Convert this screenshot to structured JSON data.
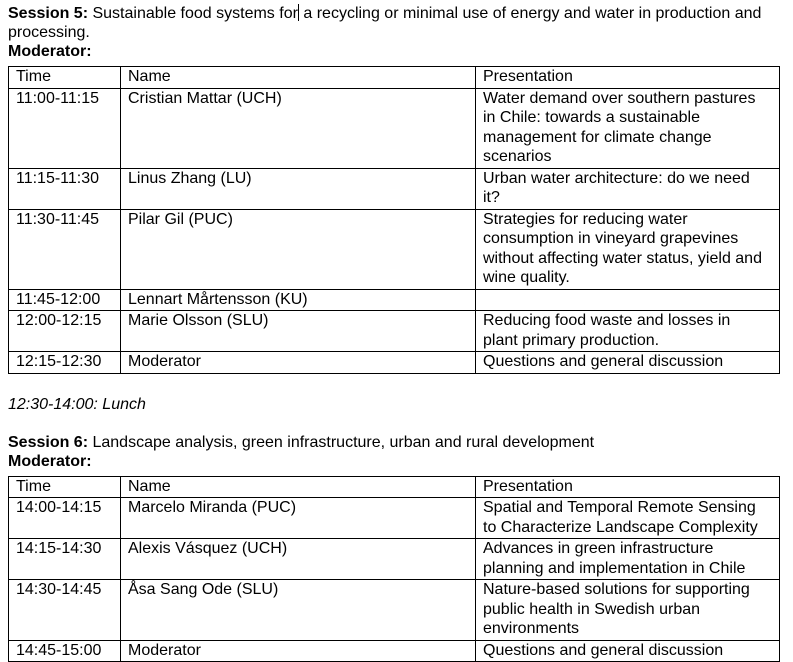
{
  "document": {
    "colors": {
      "background": "#ffffff",
      "text": "#000000",
      "table_border": "#000000"
    },
    "session5": {
      "heading_bold": "Session 5:",
      "heading_before_caret": " Sustainable food systems for",
      "heading_after_caret": " a recycling or minimal use of energy and water in production and processing.",
      "moderator_label": "Moderator:",
      "table": {
        "headers": [
          "Time",
          "Name",
          "Presentation"
        ],
        "rows": [
          {
            "time": "11:00-11:15",
            "name": "Cristian Mattar (UCH)",
            "presentation": "Water demand over southern pastures in Chile: towards a sustainable management for climate change scenarios"
          },
          {
            "time": "11:15-11:30",
            "name": "Linus Zhang (LU)",
            "presentation": "Urban water architecture: do we need it?"
          },
          {
            "time": "11:30-11:45",
            "name": "Pilar Gil (PUC)",
            "presentation": "Strategies for reducing water consumption in vineyard grapevines without affecting water status, yield and wine quality."
          },
          {
            "time": "11:45-12:00",
            "name": "Lennart Mårtensson (KU)",
            "presentation": ""
          },
          {
            "time": "12:00-12:15",
            "name": "Marie Olsson (SLU)",
            "presentation": "Reducing food waste and losses in plant primary production."
          },
          {
            "time": "12:15-12:30",
            "name": "Moderator",
            "presentation": "Questions and general discussion"
          }
        ]
      }
    },
    "lunch_line": "12:30-14:00: Lunch",
    "session6": {
      "heading_bold": "Session 6:",
      "heading_rest": " Landscape analysis, green infrastructure, urban and rural development",
      "moderator_label": "Moderator:",
      "table": {
        "headers": [
          "Time",
          "Name",
          "Presentation"
        ],
        "rows": [
          {
            "time": "14:00-14:15",
            "name": "Marcelo Miranda (PUC)",
            "presentation": "Spatial and Temporal Remote Sensing to Characterize Landscape Complexity"
          },
          {
            "time": "14:15-14:30",
            "name": "Alexis Vásquez (UCH)",
            "presentation": "Advances in green infrastructure planning and implementation in Chile"
          },
          {
            "time": "14:30-14:45",
            "name": "Åsa Sang Ode (SLU)",
            "presentation": "Nature-based solutions for supporting public health in Swedish urban environments"
          },
          {
            "time": "14:45-15:00",
            "name": "Moderator",
            "presentation": "Questions and general discussion"
          }
        ]
      }
    }
  }
}
